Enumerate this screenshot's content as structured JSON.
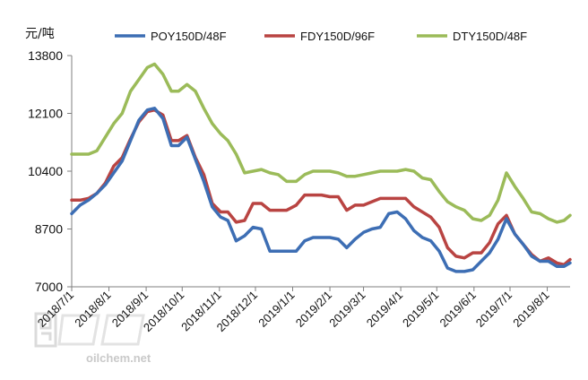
{
  "chart_data": {
    "type": "line",
    "unit_label": "元/吨",
    "ylim": [
      7000,
      13800
    ],
    "yticks": [
      7000,
      8700,
      10400,
      12100,
      13800
    ],
    "xlim": [
      "2018-07-01",
      "2019-08-20"
    ],
    "xticks": [
      "2018/7/1",
      "2018/8/1",
      "2018/9/1",
      "2018/10/1",
      "2018/11/1",
      "2018/12/1",
      "2019/1/1",
      "2019/2/1",
      "2019/3/1",
      "2019/4/1",
      "2019/5/1",
      "2019/6/1",
      "2019/7/1",
      "2019/8/1"
    ],
    "grid": false,
    "legend_position": "top",
    "series": [
      {
        "name": "POY150D/48F",
        "color": "#3d6eb4",
        "x": [
          "2018-07-01",
          "2018-07-08",
          "2018-07-15",
          "2018-07-22",
          "2018-07-29",
          "2018-08-05",
          "2018-08-12",
          "2018-08-19",
          "2018-08-26",
          "2018-09-02",
          "2018-09-08",
          "2018-09-15",
          "2018-09-22",
          "2018-09-28",
          "2018-10-05",
          "2018-10-12",
          "2018-10-19",
          "2018-10-26",
          "2018-11-02",
          "2018-11-08",
          "2018-11-15",
          "2018-11-22",
          "2018-11-29",
          "2018-12-06",
          "2018-12-13",
          "2018-12-20",
          "2018-12-27",
          "2019-01-04",
          "2019-01-11",
          "2019-01-18",
          "2019-01-25",
          "2019-02-01",
          "2019-02-08",
          "2019-02-15",
          "2019-02-22",
          "2019-03-01",
          "2019-03-08",
          "2019-03-15",
          "2019-03-22",
          "2019-03-29",
          "2019-04-05",
          "2019-04-12",
          "2019-04-19",
          "2019-04-26",
          "2019-05-03",
          "2019-05-10",
          "2019-05-17",
          "2019-05-24",
          "2019-05-31",
          "2019-06-07",
          "2019-06-14",
          "2019-06-21",
          "2019-06-28",
          "2019-07-05",
          "2019-07-12",
          "2019-07-19",
          "2019-07-26",
          "2019-08-02",
          "2019-08-09",
          "2019-08-15",
          "2019-08-20"
        ],
        "y": [
          9150,
          9400,
          9550,
          9750,
          10000,
          10350,
          10700,
          11300,
          11900,
          12200,
          12250,
          11950,
          11150,
          11150,
          11400,
          10750,
          10100,
          9350,
          9050,
          8950,
          8350,
          8500,
          8750,
          8700,
          8050,
          8050,
          8050,
          8050,
          8350,
          8450,
          8450,
          8450,
          8400,
          8150,
          8400,
          8600,
          8700,
          8750,
          9150,
          9200,
          9000,
          8650,
          8450,
          8350,
          8050,
          7550,
          7450,
          7450,
          7500,
          7750,
          8000,
          8400,
          9000,
          8550,
          8250,
          7900,
          7750,
          7750,
          7600,
          7600,
          7700
        ]
      },
      {
        "name": "FDY150D/96F",
        "color": "#b94442",
        "x": [
          "2018-07-01",
          "2018-07-08",
          "2018-07-15",
          "2018-07-22",
          "2018-07-29",
          "2018-08-05",
          "2018-08-12",
          "2018-08-19",
          "2018-08-26",
          "2018-09-02",
          "2018-09-08",
          "2018-09-15",
          "2018-09-22",
          "2018-09-28",
          "2018-10-05",
          "2018-10-12",
          "2018-10-19",
          "2018-10-26",
          "2018-11-02",
          "2018-11-08",
          "2018-11-15",
          "2018-11-22",
          "2018-11-29",
          "2018-12-06",
          "2018-12-13",
          "2018-12-20",
          "2018-12-27",
          "2019-01-04",
          "2019-01-11",
          "2019-01-18",
          "2019-01-25",
          "2019-02-01",
          "2019-02-08",
          "2019-02-15",
          "2019-02-22",
          "2019-03-01",
          "2019-03-08",
          "2019-03-15",
          "2019-03-22",
          "2019-03-29",
          "2019-04-05",
          "2019-04-12",
          "2019-04-19",
          "2019-04-26",
          "2019-05-03",
          "2019-05-10",
          "2019-05-17",
          "2019-05-24",
          "2019-05-31",
          "2019-06-07",
          "2019-06-14",
          "2019-06-21",
          "2019-06-28",
          "2019-07-05",
          "2019-07-12",
          "2019-07-19",
          "2019-07-26",
          "2019-08-02",
          "2019-08-09",
          "2019-08-15",
          "2019-08-20"
        ],
        "y": [
          9550,
          9550,
          9600,
          9750,
          10050,
          10550,
          10800,
          11350,
          11850,
          12150,
          12200,
          12050,
          11300,
          11300,
          11450,
          10800,
          10300,
          9450,
          9200,
          9200,
          8900,
          8950,
          9450,
          9450,
          9250,
          9250,
          9250,
          9400,
          9700,
          9700,
          9700,
          9650,
          9650,
          9250,
          9400,
          9400,
          9500,
          9600,
          9600,
          9600,
          9600,
          9350,
          9200,
          9050,
          8750,
          8150,
          7900,
          7850,
          8000,
          8000,
          8300,
          8850,
          9100,
          8550,
          8250,
          7950,
          7750,
          7850,
          7700,
          7650,
          7800
        ]
      },
      {
        "name": "DTY150D/48F",
        "color": "#9bbb59",
        "x": [
          "2018-07-01",
          "2018-07-08",
          "2018-07-15",
          "2018-07-22",
          "2018-07-29",
          "2018-08-05",
          "2018-08-12",
          "2018-08-19",
          "2018-08-26",
          "2018-09-02",
          "2018-09-08",
          "2018-09-15",
          "2018-09-22",
          "2018-09-28",
          "2018-10-05",
          "2018-10-12",
          "2018-10-19",
          "2018-10-26",
          "2018-11-02",
          "2018-11-08",
          "2018-11-15",
          "2018-11-22",
          "2018-11-29",
          "2018-12-06",
          "2018-12-13",
          "2018-12-20",
          "2018-12-27",
          "2019-01-04",
          "2019-01-11",
          "2019-01-18",
          "2019-01-25",
          "2019-02-01",
          "2019-02-08",
          "2019-02-15",
          "2019-02-22",
          "2019-03-01",
          "2019-03-08",
          "2019-03-15",
          "2019-03-22",
          "2019-03-29",
          "2019-04-05",
          "2019-04-12",
          "2019-04-19",
          "2019-04-26",
          "2019-05-03",
          "2019-05-10",
          "2019-05-17",
          "2019-05-24",
          "2019-05-31",
          "2019-06-07",
          "2019-06-14",
          "2019-06-21",
          "2019-06-28",
          "2019-07-05",
          "2019-07-12",
          "2019-07-19",
          "2019-07-26",
          "2019-08-02",
          "2019-08-09",
          "2019-08-15",
          "2019-08-20"
        ],
        "y": [
          10900,
          10900,
          10900,
          11000,
          11400,
          11800,
          12100,
          12750,
          13100,
          13450,
          13550,
          13250,
          12750,
          12750,
          12950,
          12750,
          12250,
          11800,
          11500,
          11300,
          10900,
          10350,
          10400,
          10450,
          10350,
          10300,
          10100,
          10100,
          10300,
          10400,
          10400,
          10400,
          10350,
          10250,
          10250,
          10300,
          10350,
          10400,
          10400,
          10400,
          10450,
          10400,
          10200,
          10150,
          9800,
          9500,
          9350,
          9250,
          9000,
          8950,
          9100,
          9550,
          10350,
          9950,
          9600,
          9200,
          9150,
          9000,
          8900,
          8950,
          9100
        ]
      }
    ]
  },
  "watermark": {
    "text": "oilchem.net"
  }
}
